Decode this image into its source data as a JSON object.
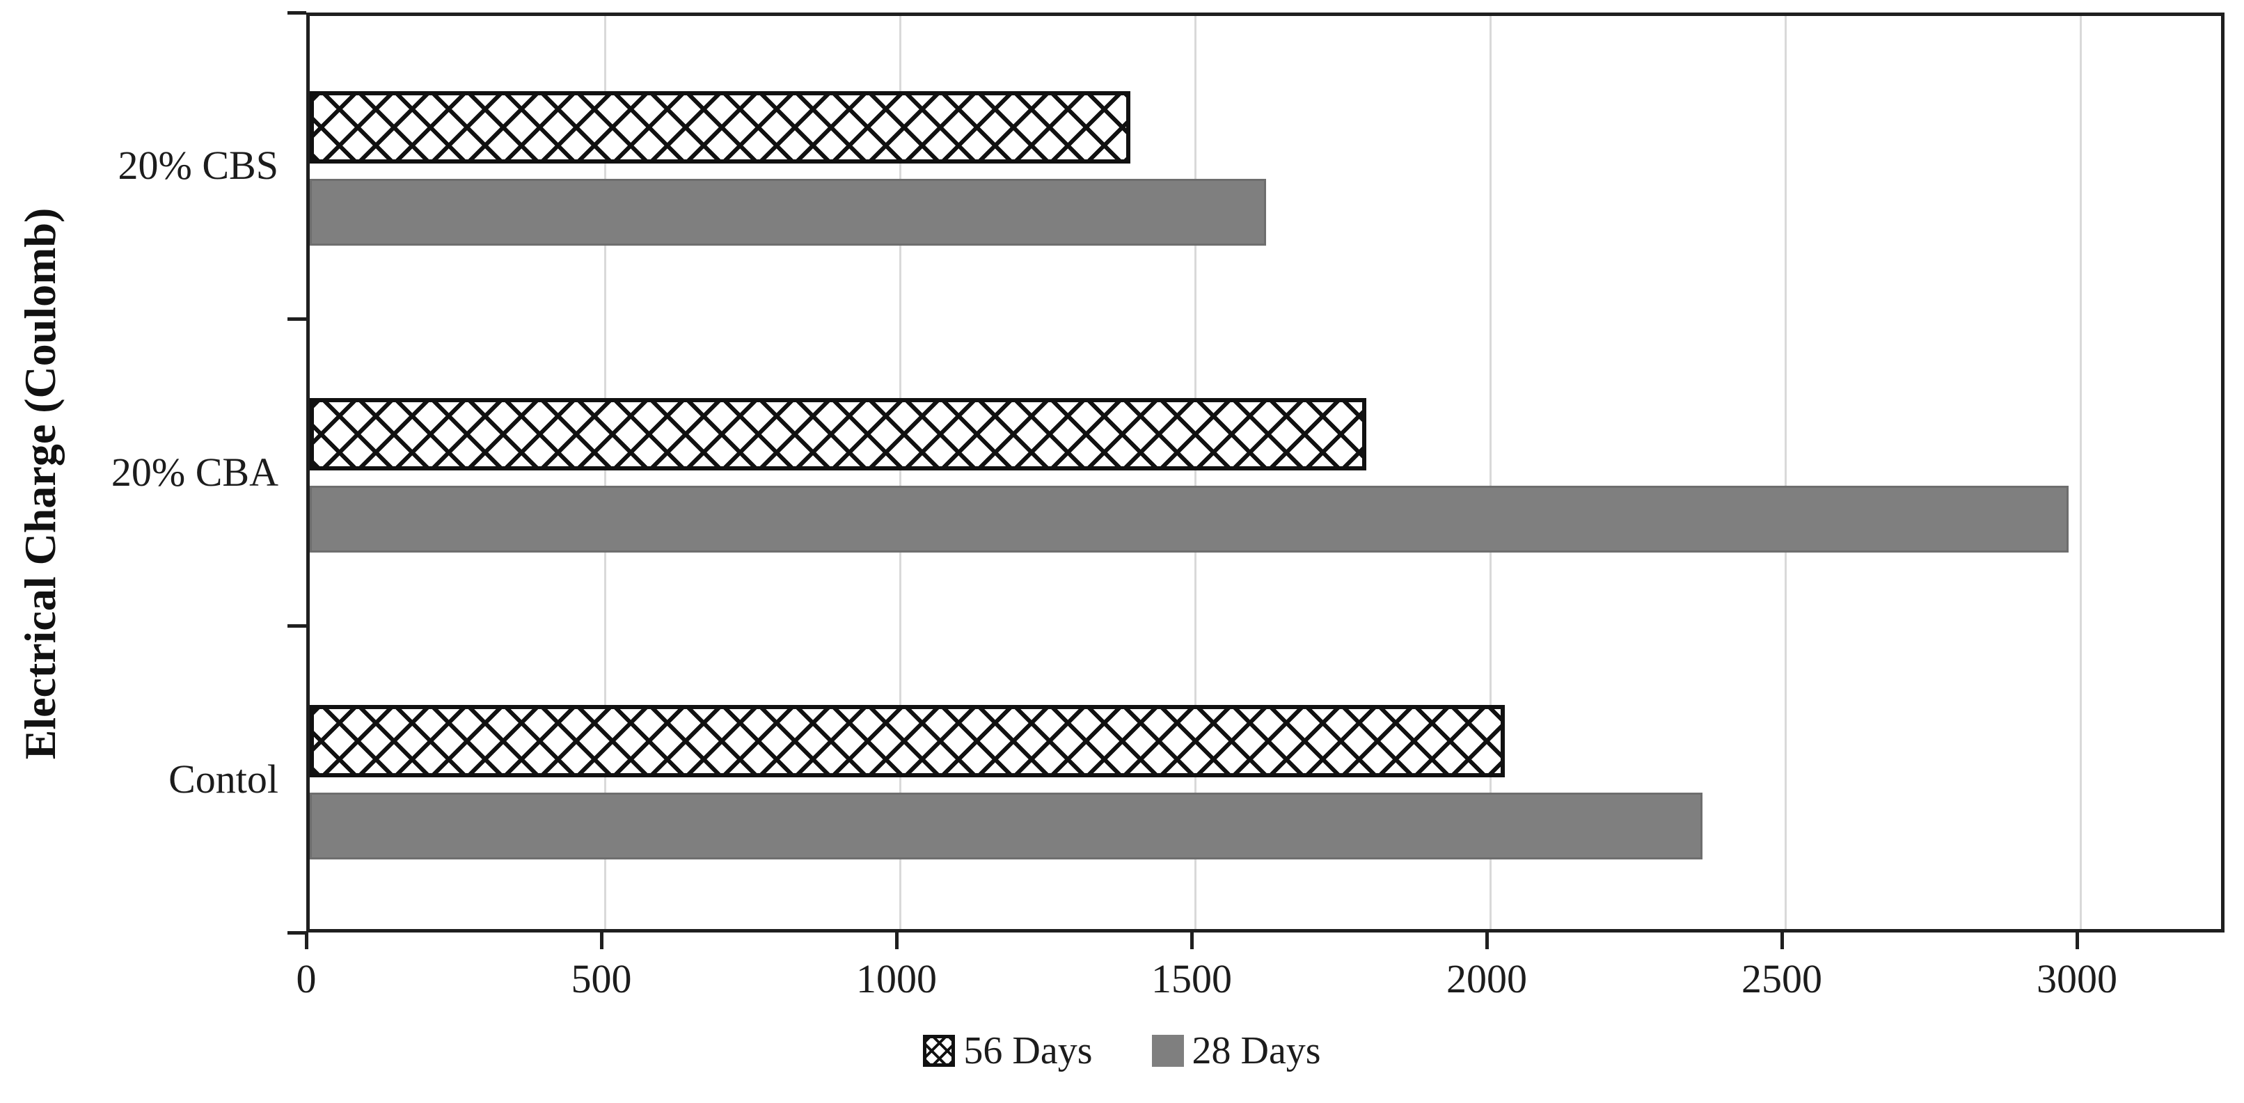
{
  "chart_data": {
    "type": "bar",
    "orientation": "horizontal",
    "title": "",
    "ylabel": "Electrical Charge (Coulomb)",
    "xlabel": "",
    "categories": [
      "20% CBS",
      "20% CBA",
      "Contol"
    ],
    "series": [
      {
        "name": "56 Days",
        "style": "crosshatch",
        "color": "#ffffff",
        "pattern_color": "#111111",
        "values": [
          1390,
          1790,
          2025
        ]
      },
      {
        "name": "28 Days",
        "style": "solid",
        "color": "#7f7f7f",
        "values": [
          1620,
          2980,
          2360
        ]
      }
    ],
    "xlim": [
      0,
      3250
    ],
    "xticks": [
      0,
      500,
      1000,
      1500,
      2000,
      2500,
      3000
    ],
    "grid": true,
    "gridline_color": "#d9d9d9",
    "legend_position": "bottom-center"
  }
}
